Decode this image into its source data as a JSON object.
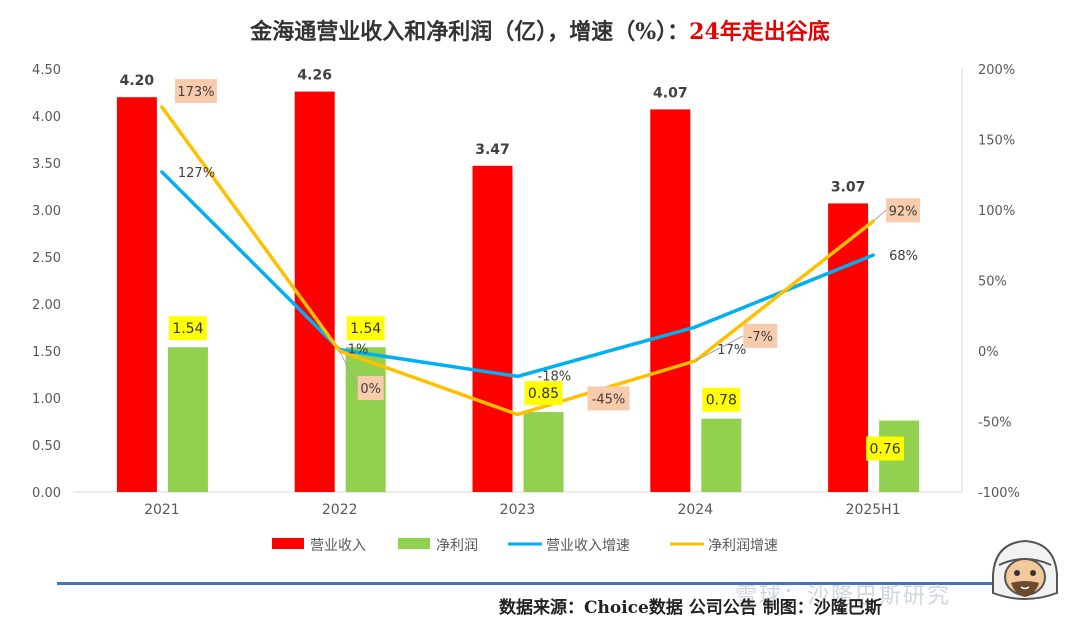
{
  "title": {
    "main": "金海通营业收入和净利润（亿），增速（%）：",
    "highlight": "24年走出谷底"
  },
  "chart_data": {
    "type": "bar+line",
    "categories": [
      "2021",
      "2022",
      "2023",
      "2024",
      "2025H1"
    ],
    "y_left": {
      "min": 0,
      "max": 4.5,
      "step": 0.5,
      "ticks": [
        "0.00",
        "0.50",
        "1.00",
        "1.50",
        "2.00",
        "2.50",
        "3.00",
        "3.50",
        "4.00",
        "4.50"
      ]
    },
    "y_right": {
      "min": -100,
      "max": 200,
      "step": 50,
      "ticks": [
        "-100%",
        "-50%",
        "0%",
        "50%",
        "100%",
        "150%",
        "200%"
      ]
    },
    "series": [
      {
        "name": "营业收入",
        "type": "bar",
        "axis": "left",
        "color": "#ff0000",
        "values": [
          4.2,
          4.26,
          3.47,
          4.07,
          3.07
        ],
        "labels": [
          "4.20",
          "4.26",
          "3.47",
          "4.07",
          "3.07"
        ]
      },
      {
        "name": "净利润",
        "type": "bar",
        "axis": "left",
        "color": "#92d050",
        "values": [
          1.54,
          1.54,
          0.85,
          0.78,
          0.76
        ],
        "labels": [
          "1.54",
          "1.54",
          "0.85",
          "0.78",
          "0.76"
        ]
      },
      {
        "name": "营业收入增速",
        "type": "line",
        "axis": "right",
        "color": "#00b0f0",
        "values": [
          127,
          1,
          -18,
          17,
          68
        ],
        "labels": [
          "127%",
          "1%",
          "-18%",
          "17%",
          "68%"
        ]
      },
      {
        "name": "净利润增速",
        "type": "line",
        "axis": "right",
        "color": "#ffc000",
        "values": [
          173,
          0,
          -45,
          -7,
          92
        ],
        "labels": [
          "173%",
          "0%",
          "-45%",
          "-7%",
          "92%"
        ]
      }
    ]
  },
  "footer": {
    "source": "数据来源：Choice数据  公司公告  制图：沙隆巴斯"
  },
  "watermark": "雪球：沙隆巴斯研究"
}
